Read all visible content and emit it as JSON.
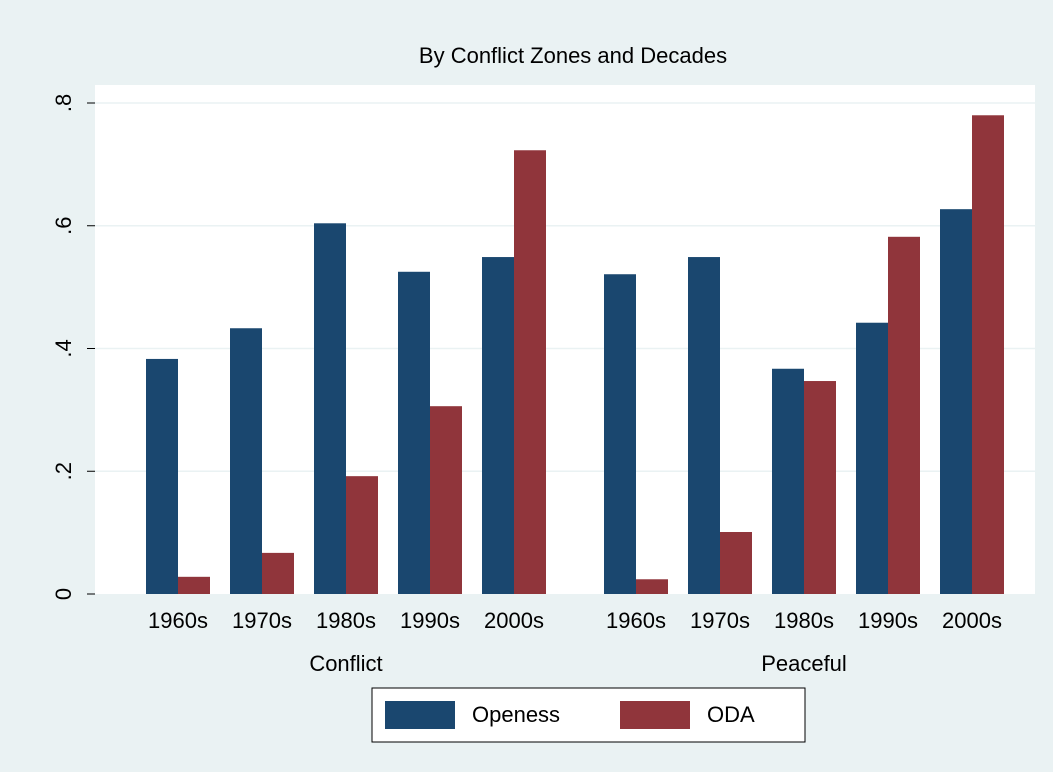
{
  "chart_data": {
    "type": "bar",
    "title": "By Conflict Zones and Decades",
    "categories": [
      "1960s",
      "1970s",
      "1980s",
      "1990s",
      "2000s",
      "1960s",
      "1970s",
      "1980s",
      "1990s",
      "2000s"
    ],
    "group_labels": [
      "Conflict",
      "Peaceful"
    ],
    "series": [
      {
        "name": "Openess",
        "color": "#1a476f",
        "values": [
          0.383,
          0.433,
          0.604,
          0.525,
          0.549,
          0.521,
          0.549,
          0.367,
          0.442,
          0.627
        ]
      },
      {
        "name": "ODA",
        "color": "#90353b",
        "values": [
          0.028,
          0.067,
          0.192,
          0.306,
          0.723,
          0.024,
          0.101,
          0.347,
          0.582,
          0.78
        ]
      }
    ],
    "ylim": [
      0,
      0.8
    ],
    "yticks": [
      0,
      {
        "value": 0.2,
        "label": ".2"
      },
      {
        "value": 0.4,
        "label": ".4"
      },
      {
        "value": 0.6,
        "label": ".6"
      },
      {
        "value": 0.8,
        "label": ".8"
      }
    ],
    "grid": true,
    "legend": "bottom"
  }
}
